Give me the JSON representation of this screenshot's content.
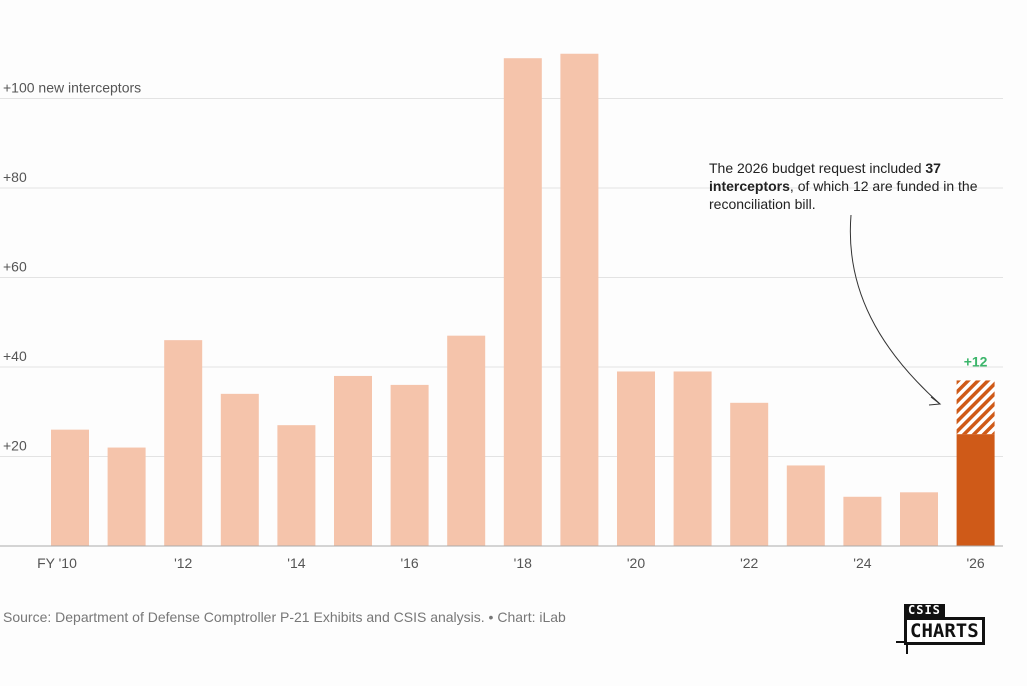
{
  "chart_data": {
    "type": "bar",
    "categories": [
      "2010",
      "2011",
      "2012",
      "2013",
      "2014",
      "2015",
      "2016",
      "2017",
      "2018",
      "2019",
      "2020",
      "2021",
      "2022",
      "2023",
      "2024",
      "2025",
      "2026"
    ],
    "values": [
      26,
      22,
      46,
      34,
      27,
      38,
      36,
      47,
      109,
      110,
      39,
      39,
      32,
      18,
      11,
      12,
      25
    ],
    "series": [
      {
        "name": "new interceptors",
        "values": [
          26,
          22,
          46,
          34,
          27,
          38,
          36,
          47,
          109,
          110,
          39,
          39,
          32,
          18,
          11,
          12,
          25
        ]
      },
      {
        "name": "reconciliation bill (hatched)",
        "values": [
          0,
          0,
          0,
          0,
          0,
          0,
          0,
          0,
          0,
          0,
          0,
          0,
          0,
          0,
          0,
          0,
          12
        ]
      }
    ],
    "ylim": [
      0,
      110
    ],
    "yticks": [
      20,
      40,
      60,
      80,
      100
    ],
    "ytick_labels": [
      "+20",
      "+40",
      "+60",
      "+80",
      "+100 new interceptors"
    ],
    "xtick_labels": {
      "2010": "FY '10",
      "2012": "'12",
      "2014": "'14",
      "2016": "'16",
      "2018": "'18",
      "2020": "'20",
      "2022": "'22",
      "2024": "'24",
      "2026": "'26"
    },
    "data_label": "+12",
    "grid": true,
    "colors": {
      "bar": "#f5c4ab",
      "highlight": "#cf5a18",
      "label": "#3bb56a"
    }
  },
  "annotation": {
    "pre": "The 2026 budget request included ",
    "bold": "37 interceptors",
    "post": ", of which 12 are funded in the reconciliation bill."
  },
  "source": "Source: Department of Defense Comptroller P-21 Exhibits and CSIS analysis. • Chart: iLab",
  "logo": {
    "top": "CSIS",
    "main": "CHARTS"
  }
}
